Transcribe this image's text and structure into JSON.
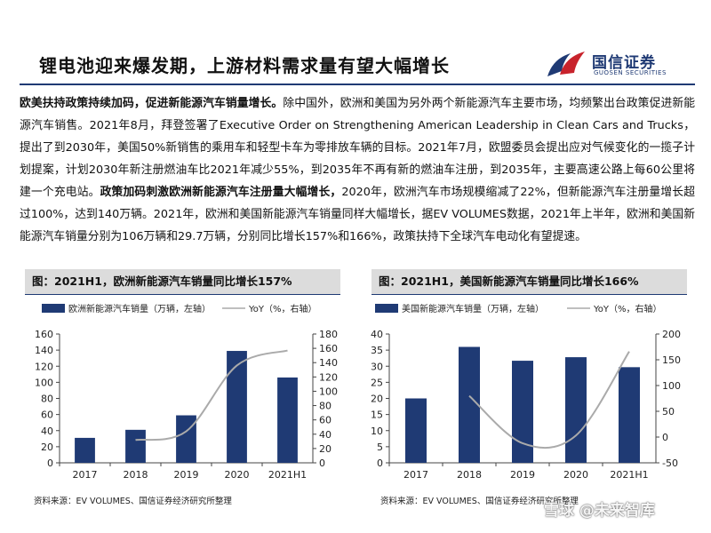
{
  "header": {
    "title": "锂电池迎来爆发期，上游材料需求量有望大幅增长",
    "logo_cn": "国信证券",
    "logo_en": "GUOSEN SECURITIES"
  },
  "body": {
    "lead_bold": "欧美扶持政策持续加码，促进新能源汽车销量增长。",
    "part1": "除中国外，欧洲和美国为另外两个新能源汽车主要市场，均频繁出台政策促进新能源汽车销售。2021年8月，拜登签署了Executive Order on Strengthening American Leadership in Clean Cars and Trucks，提出了到2030年，美国50%新销售的乘用车和轻型卡车为零排放车辆的目标。2021年7月，欧盟委员会提出应对气候变化的一揽子计划提案，计划2030年新注册燃油车比2021年减少55%，到2035年不再有新的燃油车注册，到2035年，主要高速公路上每60公里将建一个充电站。",
    "mid_bold": "政策加码刺激欧洲新能源汽车注册量大幅增长，",
    "part2": "2020年，欧洲汽车市场规模缩减了22%，但新能源汽车注册量增长超过100%，达到140万辆。2021年，欧洲和美国新能源汽车销量同样大幅增长，据EV VOLUMES数据，2021年上半年，欧洲和美国新能源汽车销量分别为106万辆和29.7万辆，分别同比增长157%和166%，政策扶持下全球汽车电动化有望提速。"
  },
  "figures": {
    "left_caption": "图：2021H1，欧洲新能源汽车销量同比增长157%",
    "right_caption": "图：2021H1，美国新能源汽车销量同比增长166%",
    "left_source": "资料来源：EV VOLUMES、国信证券经济研究所整理",
    "right_source": "资料来源：EV VOLUMES、国信证券经济研究所整理"
  },
  "watermark": "雪球 @未来智库",
  "colors": {
    "bar": "#1f3a74",
    "line": "#aaaaaa",
    "accent": "#1f3a74",
    "logo_red": "#c8232c"
  },
  "chart_data": [
    {
      "type": "bar",
      "categories": [
        "2017",
        "2018",
        "2019",
        "2020",
        "2021H1"
      ],
      "series": [
        {
          "name": "欧洲新能源汽车销量（万辆，左轴）",
          "values": [
            31,
            41,
            59,
            139,
            106
          ],
          "axis": "left"
        },
        {
          "name": "YoY（%，右轴）",
          "type": "line",
          "values": [
            null,
            32,
            44,
            136,
            157
          ],
          "axis": "right"
        }
      ],
      "ylim_left": [
        0,
        160
      ],
      "yticks_left": [
        0,
        20,
        40,
        60,
        80,
        100,
        120,
        140,
        160
      ],
      "ylim_right": [
        0,
        180
      ],
      "yticks_right": [
        0,
        20,
        40,
        60,
        80,
        100,
        120,
        140,
        160,
        180
      ],
      "legend": "top"
    },
    {
      "type": "bar",
      "categories": [
        "2017",
        "2018",
        "2019",
        "2020",
        "2021H1"
      ],
      "series": [
        {
          "name": "美国新能源汽车销量（万辆，左轴）",
          "values": [
            20,
            36,
            31.7,
            32.8,
            29.7
          ],
          "axis": "left"
        },
        {
          "name": "YoY（%，右轴）",
          "type": "line",
          "values": [
            null,
            80,
            -12,
            3,
            166
          ],
          "axis": "right"
        }
      ],
      "ylim_left": [
        0,
        40
      ],
      "yticks_left": [
        0,
        5,
        10,
        15,
        20,
        25,
        30,
        35,
        40
      ],
      "ylim_right": [
        -50,
        200
      ],
      "yticks_right": [
        -50,
        0,
        50,
        100,
        150,
        200
      ],
      "legend": "top"
    }
  ]
}
